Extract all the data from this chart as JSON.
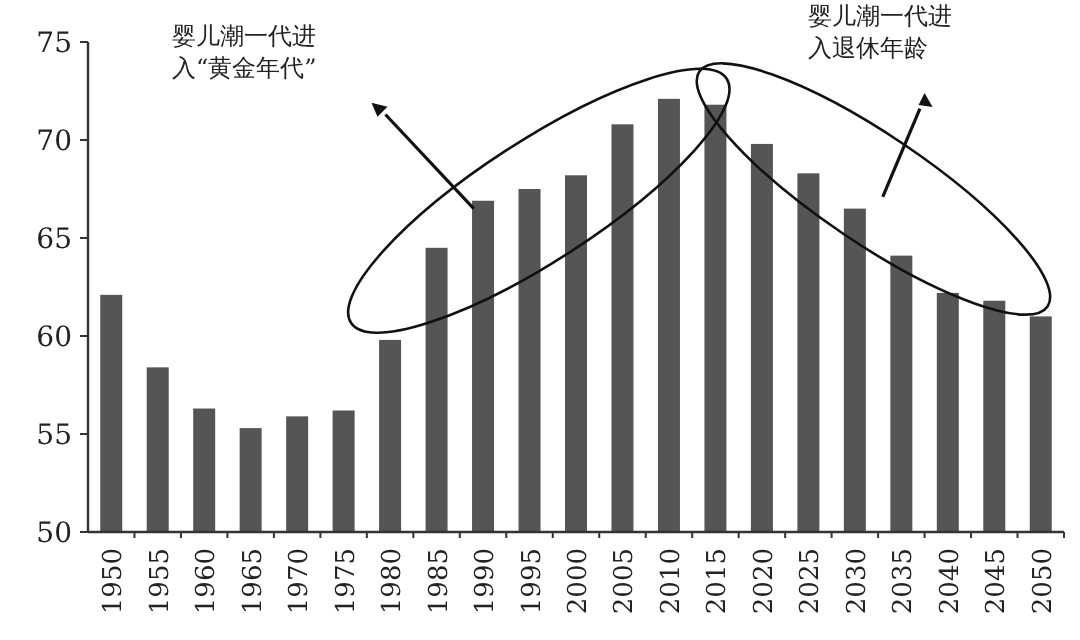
{
  "chart_data": {
    "type": "bar",
    "categories": [
      "1950",
      "1955",
      "1960",
      "1965",
      "1970",
      "1975",
      "1980",
      "1985",
      "1990",
      "1995",
      "2000",
      "2005",
      "2010",
      "2015",
      "2020",
      "2025",
      "2030",
      "2035",
      "2040",
      "2045",
      "2050"
    ],
    "values": [
      62.1,
      58.4,
      56.3,
      55.3,
      55.9,
      56.2,
      59.8,
      64.5,
      66.9,
      67.5,
      68.2,
      70.8,
      72.1,
      71.8,
      69.8,
      68.3,
      66.5,
      64.1,
      62.2,
      61.8,
      61.0
    ],
    "color": "#555555",
    "ylim": [
      50,
      75
    ],
    "yticks": [
      50,
      55,
      60,
      65,
      70,
      75
    ],
    "grid": false,
    "annotations": [
      "婴儿潮一代进入“黄金年代”",
      "婴儿潮一代进入退休年龄"
    ]
  }
}
